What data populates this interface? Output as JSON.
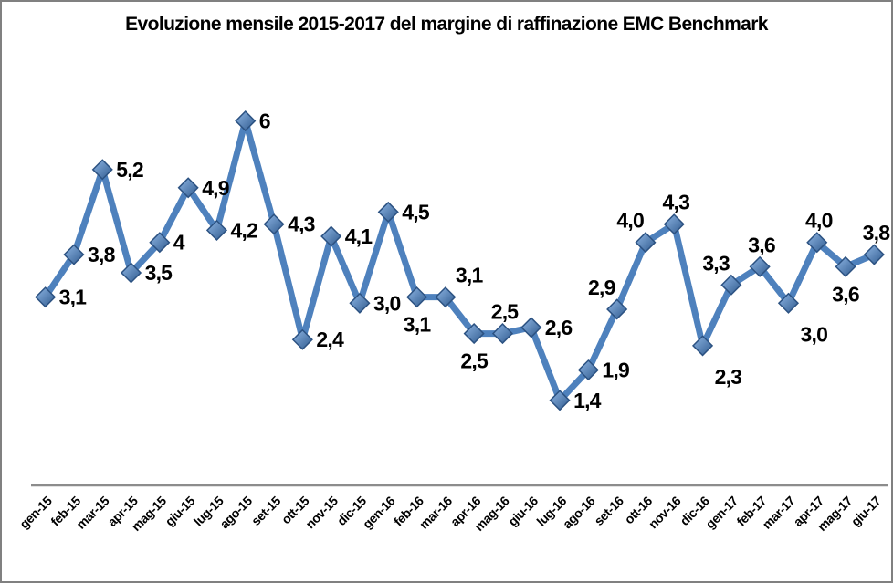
{
  "window": {
    "background": "#ffffff",
    "border_color": "#808080"
  },
  "chart_data": {
    "type": "line",
    "title": "Evoluzione mensile 2015-2017 del margine di raffinazione EMC Benchmark",
    "categories": [
      "gen-15",
      "feb-15",
      "mar-15",
      "apr-15",
      "mag-15",
      "giu-15",
      "lug-15",
      "ago-15",
      "set-15",
      "ott-15",
      "nov-15",
      "dic-15",
      "gen-16",
      "feb-16",
      "mar-16",
      "apr-16",
      "mag-16",
      "giu-16",
      "lug-16",
      "ago-16",
      "set-16",
      "ott-16",
      "nov-16",
      "dic-16",
      "gen-17",
      "feb-17",
      "mar-17",
      "apr-17",
      "mag-17",
      "giu-17"
    ],
    "values": [
      3.1,
      3.8,
      5.2,
      3.5,
      4,
      4.9,
      4.2,
      6,
      4.3,
      2.4,
      4.1,
      3.0,
      4.5,
      3.1,
      3.1,
      2.5,
      2.5,
      2.6,
      1.4,
      1.9,
      2.9,
      4.0,
      4.3,
      2.3,
      3.3,
      3.6,
      3.0,
      4.0,
      3.6,
      3.8
    ],
    "data_labels": [
      "3,1",
      "3,8",
      "5,2",
      "3,5",
      "4",
      "4,9",
      "4,2",
      "6",
      "4,3",
      "2,4",
      "4,1",
      "3,0",
      "4,5",
      "3,1",
      "3,1",
      "2,5",
      "2,5",
      "2,6",
      "1,4",
      "1,9",
      "2,9",
      "4,0",
      "4,3",
      "2,3",
      "3,3",
      "3,6",
      "3,0",
      "4,0",
      "3,6",
      "3,8"
    ],
    "label_placements": [
      "right",
      "right",
      "right",
      "right",
      "right",
      "right",
      "right",
      "right",
      "right",
      "right",
      "right",
      "right",
      "right",
      "below",
      "above-right",
      "below",
      "above",
      "right",
      "right",
      "right",
      "above-left",
      "above-left",
      "above",
      "below-right",
      "above-left",
      "above",
      "below-right",
      "above",
      "below",
      "above"
    ],
    "xlabel": "",
    "ylabel": "",
    "ylim": [
      0,
      7
    ],
    "grid": false,
    "legend": "none",
    "colors": {
      "line": "#4E81BD",
      "marker_light": "#8FB6E4",
      "marker_dark": "#2F5A8E",
      "marker_border": "#2C5282",
      "axis_line": "#8C8C8C",
      "text": "#000000"
    }
  }
}
